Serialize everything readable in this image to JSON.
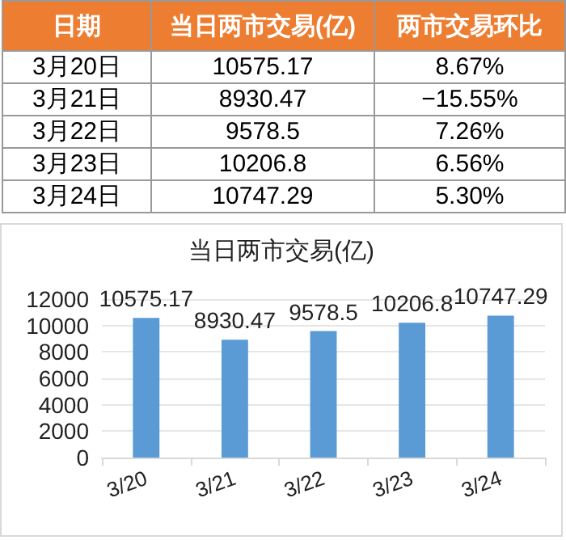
{
  "chart_data": [
    {
      "type": "other",
      "xlabel": "日期",
      "categories": [
        "3月20日",
        "3月21日",
        "3月22日",
        "3月23日",
        "3月24日"
      ],
      "data_labels": true,
      "series": [
        {
          "name": "当日两市交易(亿)",
          "values": [
            10575.17,
            8930.47,
            9578.5,
            10206.8,
            10747.29
          ]
        },
        {
          "name": "两市交易环比",
          "values": [
            8.67,
            -15.55,
            7.26,
            6.56,
            5.3
          ],
          "value_labels": [
            "8.67%",
            "−15.55%",
            "7.26%",
            "6.56%",
            "5.30%"
          ]
        }
      ]
    },
    {
      "type": "bar",
      "title": "当日两市交易(亿)",
      "categories": [
        "3/20",
        "3/21",
        "3/22",
        "3/23",
        "3/24"
      ],
      "values": [
        10575.17,
        8930.47,
        9578.5,
        10206.8,
        10747.29
      ],
      "color": "#5b9bd5",
      "ylim": [
        0,
        12000
      ],
      "yticks": [
        0,
        2000,
        4000,
        6000,
        8000,
        10000,
        12000
      ],
      "grid": "y",
      "data_labels": true
    }
  ]
}
